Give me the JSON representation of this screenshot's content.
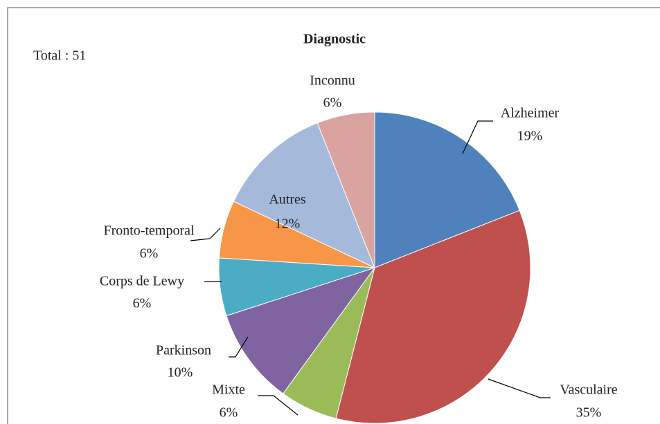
{
  "chart_data": {
    "type": "pie",
    "title": "Diagnostic",
    "annotation": "Total : 51",
    "categories": [
      "Alzheimer",
      "Vasculaire",
      "Mixte",
      "Parkinson",
      "Corps de Lewy",
      "Fronto-temporal",
      "Autres",
      "Inconnu"
    ],
    "values": [
      19,
      35,
      6,
      10,
      6,
      6,
      12,
      6
    ],
    "value_labels": [
      "19%",
      "35%",
      "6%",
      "10%",
      "6%",
      "6%",
      "12%",
      "6%"
    ],
    "colors": [
      "#4f81bd",
      "#c0504d",
      "#9bbb59",
      "#8064a2",
      "#4bacc6",
      "#f79646",
      "#a5b9db",
      "#d9a3a0"
    ]
  }
}
